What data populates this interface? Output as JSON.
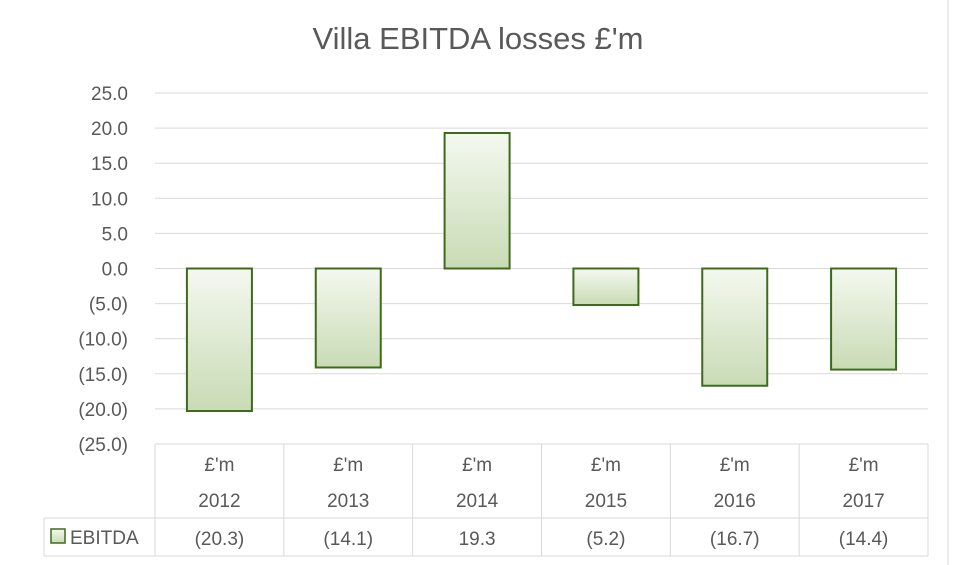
{
  "chart_data": {
    "type": "bar",
    "title": "Villa EBITDA losses £'m",
    "unit_label": "£'m",
    "categories": [
      "2012",
      "2013",
      "2014",
      "2015",
      "2016",
      "2017"
    ],
    "series": [
      {
        "name": "EBITDA",
        "values": [
          -20.3,
          -14.1,
          19.3,
          -5.2,
          -16.7,
          -14.4
        ],
        "labels": [
          "(20.3)",
          "(14.1)",
          "19.3",
          "(5.2)",
          "(16.7)",
          "(14.4)"
        ]
      }
    ],
    "ylim": [
      -25,
      25
    ],
    "yticks": [
      25,
      20,
      15,
      10,
      5,
      0,
      -5,
      -10,
      -15,
      -20,
      -25
    ],
    "ytick_labels": [
      "25.0",
      "20.0",
      "15.0",
      "10.0",
      "5.0",
      "0.0",
      "(5.0)",
      "(10.0)",
      "(15.0)",
      "(20.0)",
      "(25.0)"
    ],
    "grid": true,
    "data_table": true,
    "legend": "data-table",
    "colors": {
      "bar_fill_top": "#f4f8ef",
      "bar_fill_bottom": "#c9dbb5",
      "bar_stroke": "#3d6b1d"
    }
  }
}
